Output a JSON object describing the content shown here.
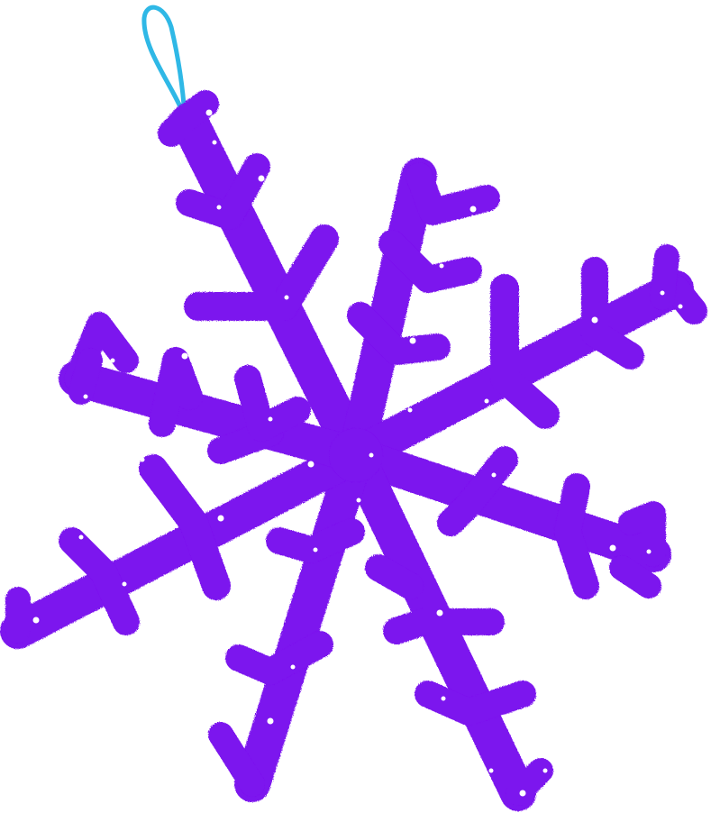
{
  "illustration": {
    "subject": "snowflake-ornament",
    "arm_count": 6,
    "colors": {
      "snowflake": "#7b12ee",
      "loop": "#2fb8e6",
      "sparkle": "#ffffff",
      "background": "#ffffff"
    },
    "icons": [
      "snowflake-icon",
      "hanging-loop-icon"
    ]
  }
}
